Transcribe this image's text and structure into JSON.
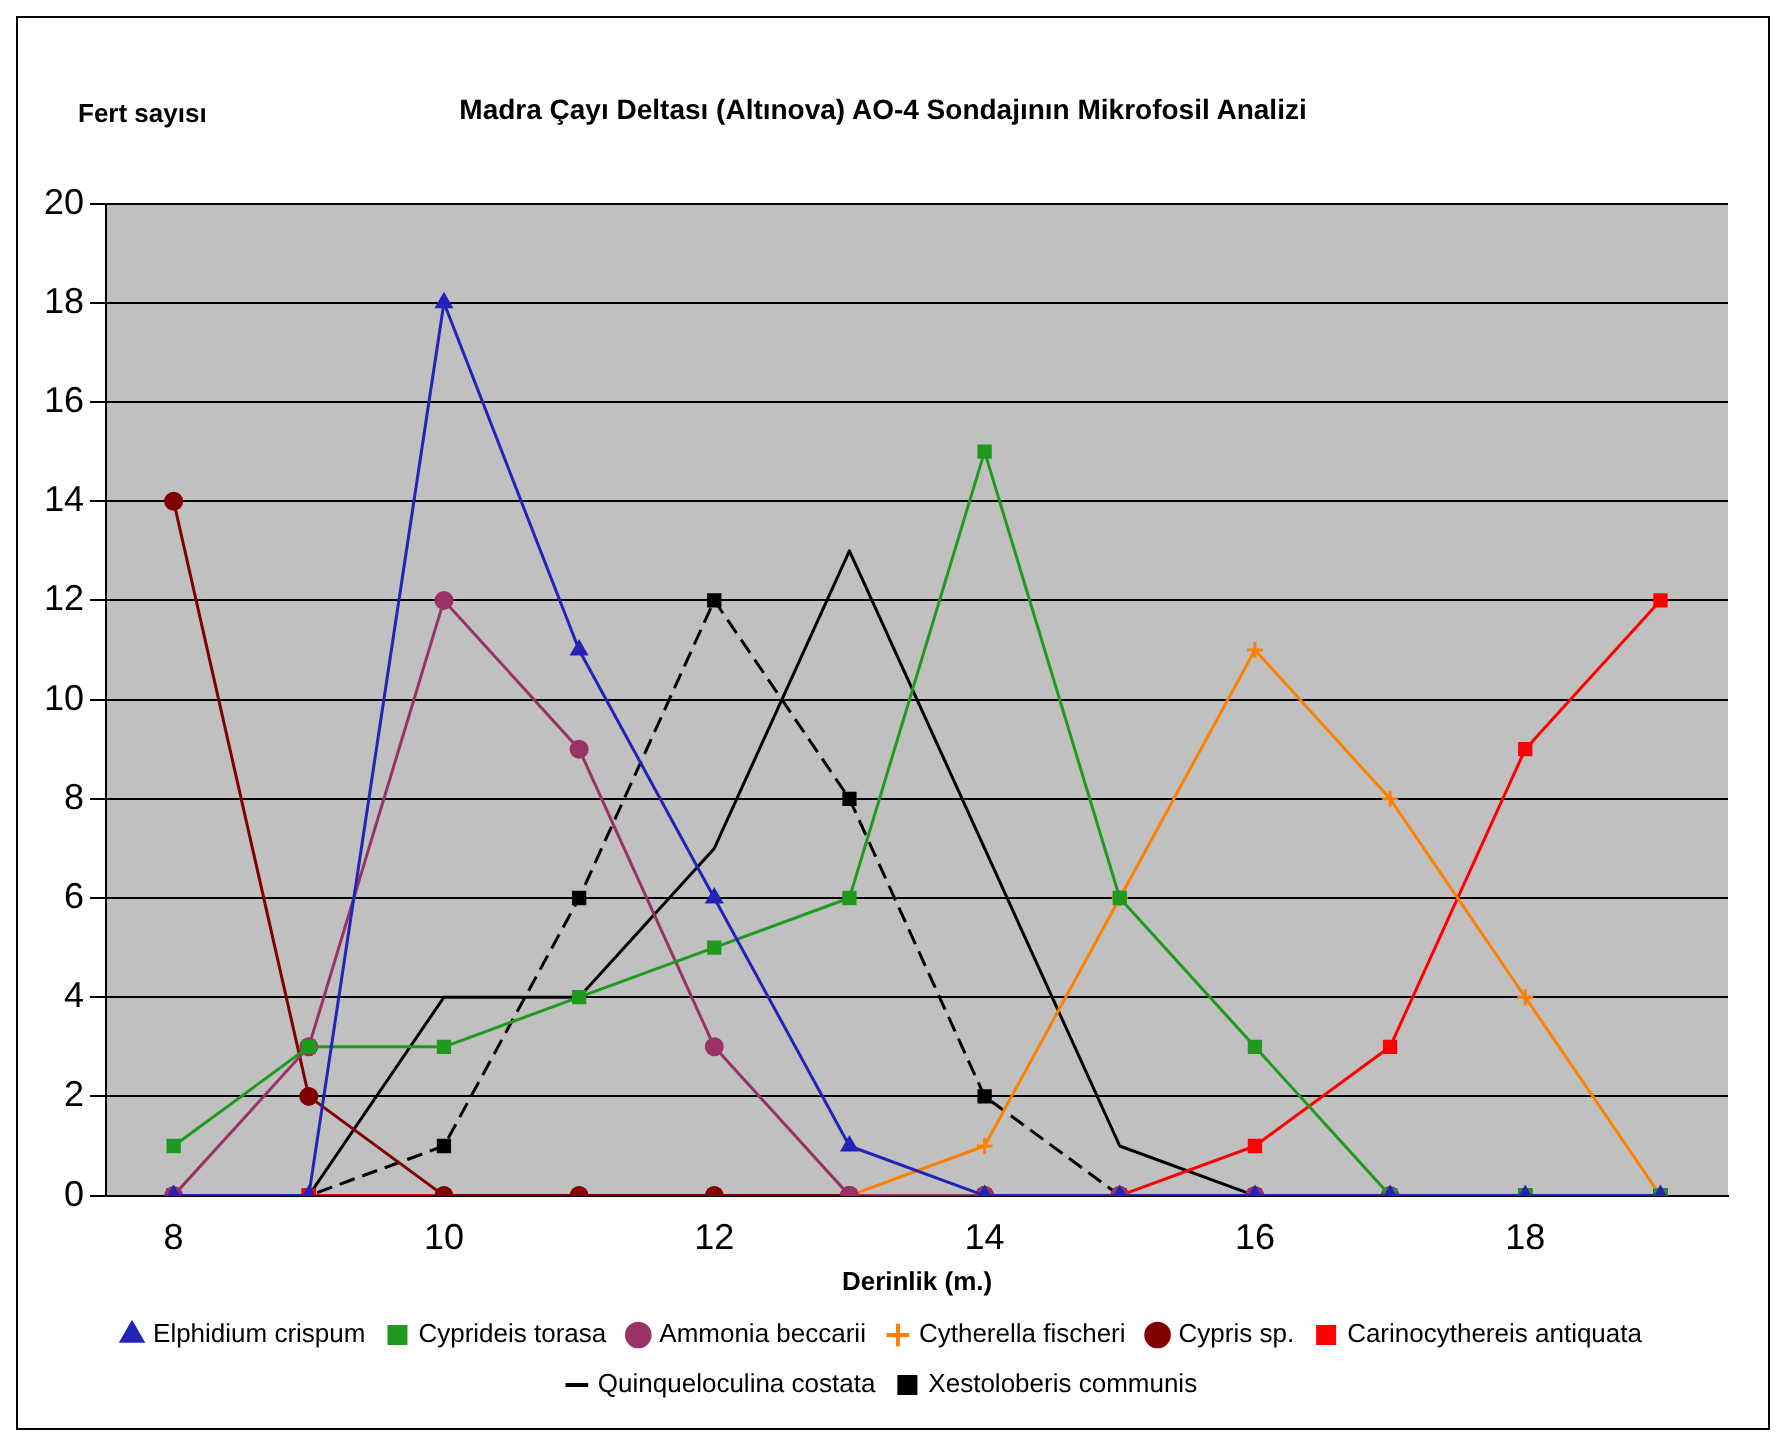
{
  "chart_data": {
    "type": "line",
    "title": "Madra Çayı Deltası (Altınova) AO-4 Sondajının Mikrofosil Analizi",
    "ylabel": "Fert sayısı",
    "xlabel": "Derinlik (m.)",
    "x": [
      8,
      9,
      10,
      11,
      12,
      13,
      14,
      15,
      16,
      17,
      18,
      19
    ],
    "series": [
      {
        "name": "Elphidium crispum",
        "color": "#2323b8",
        "marker": "triangle",
        "values": [
          0,
          0,
          18,
          11,
          6,
          1,
          0,
          0,
          0,
          0,
          0,
          0
        ]
      },
      {
        "name": "Cyprideis torasa",
        "color": "#1f9a1f",
        "marker": "square",
        "values": [
          1,
          3,
          3,
          4,
          5,
          6,
          15,
          6,
          3,
          0,
          0,
          0
        ]
      },
      {
        "name": "Ammonia beccarii",
        "color": "#993366",
        "marker": "circle",
        "values": [
          0,
          3,
          12,
          9,
          3,
          0,
          0,
          0,
          0,
          0,
          null,
          null
        ]
      },
      {
        "name": "Cytherella fischeri",
        "color": "#ff8000",
        "marker": "cross",
        "values": [
          null,
          null,
          null,
          null,
          null,
          0,
          1,
          6,
          11,
          8,
          4,
          0
        ]
      },
      {
        "name": "Cypris sp.",
        "color": "#800000",
        "marker": "circle",
        "values": [
          14,
          2,
          0,
          0,
          0,
          0,
          0,
          0,
          null,
          null,
          null,
          null
        ]
      },
      {
        "name": "Carinocythereis antiquata",
        "color": "#ff0000",
        "marker": "square",
        "values": [
          0,
          0,
          0,
          0,
          0,
          0,
          0,
          0,
          1,
          3,
          9,
          12
        ]
      },
      {
        "name": "Quinqueloculina costata",
        "color": "#000000",
        "values": [
          0,
          0,
          4,
          4,
          7,
          13,
          7,
          1,
          0,
          0,
          0,
          0
        ]
      },
      {
        "name": "Xestoloberis communis",
        "color": "#000000",
        "marker": "square",
        "line_style": "dashed",
        "values": [
          0,
          0,
          1,
          6,
          12,
          8,
          2,
          0,
          0,
          0,
          0,
          0
        ]
      }
    ],
    "xlim": [
      7.5,
      19.5
    ],
    "xticks": [
      8,
      10,
      12,
      14,
      16,
      18
    ],
    "ylim": [
      0,
      20
    ],
    "yticks": [
      0,
      2,
      4,
      6,
      8,
      10,
      12,
      14,
      16,
      18,
      20
    ],
    "grid": "y",
    "legend": "bottom"
  }
}
